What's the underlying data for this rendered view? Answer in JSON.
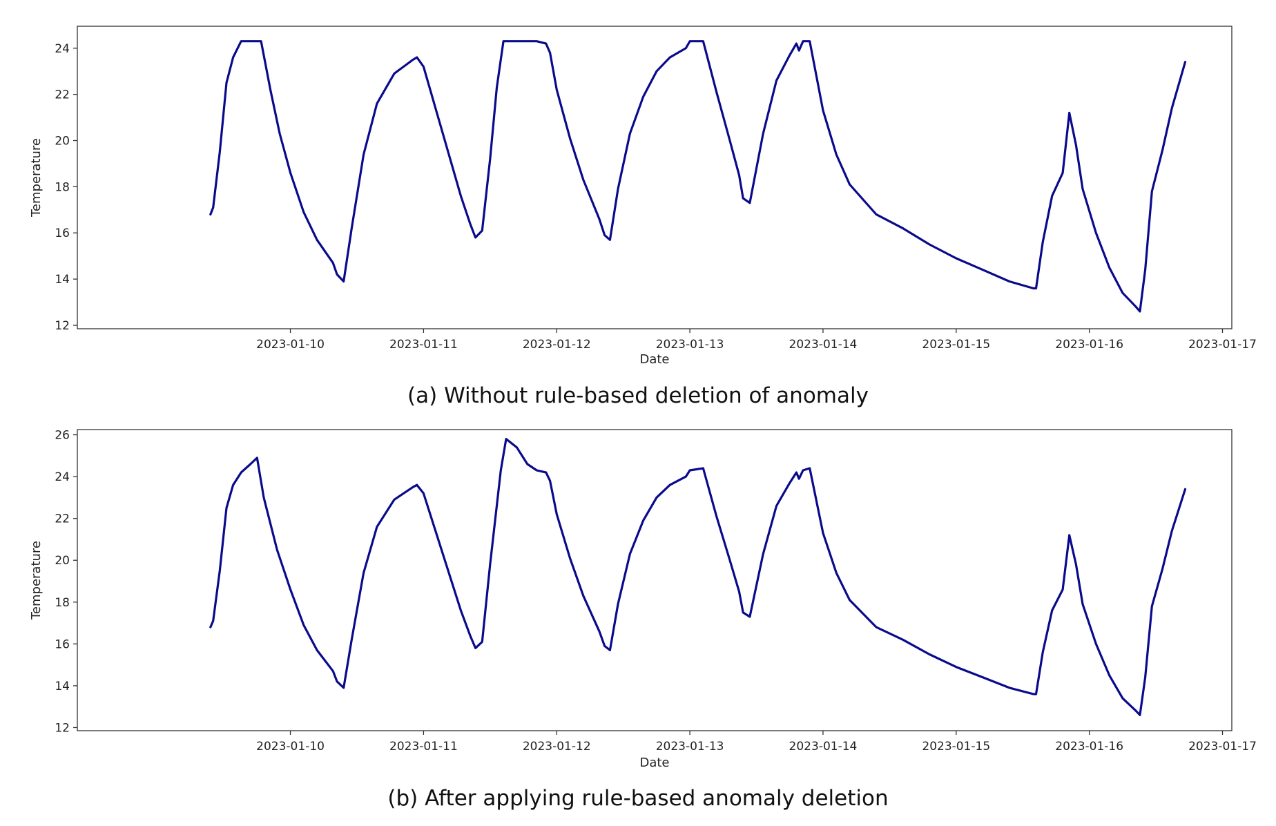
{
  "colors": {
    "line": "#0a0a8c"
  },
  "chart_data": [
    {
      "type": "line",
      "caption": "(a) Without rule-based deletion of anomaly",
      "xlabel": "Date",
      "ylabel": "Temperature",
      "xlim": [
        8.4,
        17.07
      ],
      "ylim": [
        11.85,
        24.95
      ],
      "xticks": [
        {
          "v": 10,
          "label": "2023-01-10"
        },
        {
          "v": 11,
          "label": "2023-01-11"
        },
        {
          "v": 12,
          "label": "2023-01-12"
        },
        {
          "v": 13,
          "label": "2023-01-13"
        },
        {
          "v": 14,
          "label": "2023-01-14"
        },
        {
          "v": 15,
          "label": "2023-01-15"
        },
        {
          "v": 16,
          "label": "2023-01-16"
        },
        {
          "v": 17,
          "label": "2023-01-17"
        }
      ],
      "yticks": [
        {
          "v": 12,
          "label": "12"
        },
        {
          "v": 14,
          "label": "14"
        },
        {
          "v": 16,
          "label": "16"
        },
        {
          "v": 18,
          "label": "18"
        },
        {
          "v": 20,
          "label": "20"
        },
        {
          "v": 22,
          "label": "22"
        },
        {
          "v": 24,
          "label": "24"
        }
      ],
      "series": [
        {
          "name": "Temperature",
          "x": [
            9.4,
            9.42,
            9.47,
            9.52,
            9.57,
            9.63,
            9.68,
            9.75,
            9.78,
            9.85,
            9.92,
            10.0,
            10.1,
            10.2,
            10.32,
            10.35,
            10.4,
            10.46,
            10.55,
            10.65,
            10.78,
            10.92,
            10.95,
            11.0,
            11.1,
            11.2,
            11.28,
            11.35,
            11.39,
            11.44,
            11.5,
            11.55,
            11.6,
            11.7,
            11.78,
            11.85,
            11.92,
            11.95,
            12.0,
            12.1,
            12.2,
            12.32,
            12.36,
            12.4,
            12.46,
            12.55,
            12.65,
            12.75,
            12.85,
            12.97,
            13.0,
            13.1,
            13.2,
            13.3,
            13.37,
            13.4,
            13.45,
            13.55,
            13.65,
            13.75,
            13.8,
            13.82,
            13.85,
            13.9,
            14.0,
            14.1,
            14.2,
            14.4,
            14.6,
            14.8,
            15.0,
            15.2,
            15.4,
            15.58,
            15.6,
            15.65,
            15.72,
            15.8,
            15.85,
            15.9,
            15.95,
            16.05,
            16.15,
            16.25,
            16.35,
            16.38,
            16.42,
            16.47,
            16.55,
            16.62,
            16.72
          ],
          "y": [
            16.8,
            17.1,
            19.5,
            22.5,
            23.6,
            24.3,
            24.3,
            24.3,
            24.3,
            22.2,
            20.3,
            18.6,
            16.9,
            15.7,
            14.7,
            14.2,
            13.9,
            16.2,
            19.4,
            21.6,
            22.9,
            23.5,
            23.6,
            23.2,
            21.2,
            19.2,
            17.6,
            16.4,
            15.8,
            16.1,
            19.2,
            22.3,
            24.3,
            24.3,
            24.3,
            24.3,
            24.2,
            23.8,
            22.2,
            20.1,
            18.3,
            16.6,
            15.9,
            15.7,
            17.9,
            20.3,
            21.9,
            23.0,
            23.6,
            24.0,
            24.3,
            24.3,
            22.1,
            20.0,
            18.5,
            17.5,
            17.3,
            20.3,
            22.6,
            23.7,
            24.2,
            23.9,
            24.3,
            24.3,
            21.3,
            19.4,
            18.1,
            16.8,
            16.2,
            15.5,
            14.9,
            14.4,
            13.9,
            13.6,
            13.6,
            15.6,
            17.6,
            18.6,
            21.2,
            19.8,
            17.9,
            16.0,
            14.5,
            13.4,
            12.8,
            12.6,
            14.4,
            17.8,
            19.6,
            21.4,
            23.4
          ]
        }
      ]
    },
    {
      "type": "line",
      "caption": "(b) After applying rule-based anomaly deletion",
      "xlabel": "Date",
      "ylabel": "Temperature",
      "xlim": [
        8.4,
        17.07
      ],
      "ylim": [
        11.85,
        26.25
      ],
      "xticks": [
        {
          "v": 10,
          "label": "2023-01-10"
        },
        {
          "v": 11,
          "label": "2023-01-11"
        },
        {
          "v": 12,
          "label": "2023-01-12"
        },
        {
          "v": 13,
          "label": "2023-01-13"
        },
        {
          "v": 14,
          "label": "2023-01-14"
        },
        {
          "v": 15,
          "label": "2023-01-15"
        },
        {
          "v": 16,
          "label": "2023-01-16"
        },
        {
          "v": 17,
          "label": "2023-01-17"
        }
      ],
      "yticks": [
        {
          "v": 12,
          "label": "12"
        },
        {
          "v": 14,
          "label": "14"
        },
        {
          "v": 16,
          "label": "16"
        },
        {
          "v": 18,
          "label": "18"
        },
        {
          "v": 20,
          "label": "20"
        },
        {
          "v": 22,
          "label": "22"
        },
        {
          "v": 24,
          "label": "24"
        },
        {
          "v": 26,
          "label": "26"
        }
      ],
      "series": [
        {
          "name": "Temperature",
          "x": [
            9.4,
            9.42,
            9.47,
            9.52,
            9.57,
            9.63,
            9.7,
            9.75,
            9.8,
            9.9,
            10.0,
            10.1,
            10.2,
            10.32,
            10.35,
            10.4,
            10.46,
            10.55,
            10.65,
            10.78,
            10.92,
            10.95,
            11.0,
            11.1,
            11.2,
            11.28,
            11.35,
            11.39,
            11.44,
            11.5,
            11.58,
            11.62,
            11.7,
            11.78,
            11.85,
            11.92,
            11.95,
            12.0,
            12.1,
            12.2,
            12.32,
            12.36,
            12.4,
            12.46,
            12.55,
            12.65,
            12.75,
            12.85,
            12.97,
            13.0,
            13.1,
            13.2,
            13.3,
            13.37,
            13.4,
            13.45,
            13.55,
            13.65,
            13.75,
            13.8,
            13.82,
            13.85,
            13.9,
            14.0,
            14.1,
            14.2,
            14.4,
            14.6,
            14.8,
            15.0,
            15.2,
            15.4,
            15.58,
            15.6,
            15.65,
            15.72,
            15.8,
            15.85,
            15.9,
            15.95,
            16.05,
            16.15,
            16.25,
            16.35,
            16.38,
            16.42,
            16.47,
            16.55,
            16.62,
            16.72
          ],
          "y": [
            16.8,
            17.1,
            19.5,
            22.5,
            23.6,
            24.2,
            24.6,
            24.9,
            23.0,
            20.5,
            18.6,
            16.9,
            15.7,
            14.7,
            14.2,
            13.9,
            16.2,
            19.4,
            21.6,
            22.9,
            23.5,
            23.6,
            23.2,
            21.2,
            19.2,
            17.6,
            16.4,
            15.8,
            16.1,
            19.8,
            24.3,
            25.8,
            25.4,
            24.6,
            24.3,
            24.2,
            23.8,
            22.2,
            20.1,
            18.3,
            16.6,
            15.9,
            15.7,
            17.9,
            20.3,
            21.9,
            23.0,
            23.6,
            24.0,
            24.3,
            24.4,
            22.1,
            20.0,
            18.5,
            17.5,
            17.3,
            20.3,
            22.6,
            23.7,
            24.2,
            23.9,
            24.3,
            24.4,
            21.3,
            19.4,
            18.1,
            16.8,
            16.2,
            15.5,
            14.9,
            14.4,
            13.9,
            13.6,
            13.6,
            15.6,
            17.6,
            18.6,
            21.2,
            19.8,
            17.9,
            16.0,
            14.5,
            13.4,
            12.8,
            12.6,
            14.4,
            17.8,
            19.6,
            21.4,
            23.4
          ]
        }
      ]
    }
  ]
}
